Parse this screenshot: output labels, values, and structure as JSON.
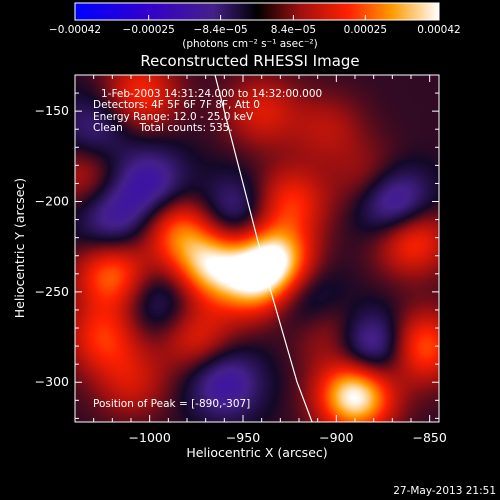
{
  "chart_data": {
    "type": "heatmap",
    "title": "Reconstructed RHESSI Image",
    "xlabel": "Heliocentric X (arcsec)",
    "ylabel": "Heliocentric Y (arcsec)",
    "xlim": [
      -1040,
      -845
    ],
    "ylim": [
      -322,
      -130
    ],
    "x_ticks": [
      -1000,
      -950,
      -900,
      -850
    ],
    "x_tick_labels": [
      "−1000",
      "−950",
      "−900",
      "−850"
    ],
    "y_ticks": [
      -150,
      -200,
      -250,
      -300
    ],
    "y_tick_labels": [
      "−150",
      "−200",
      "−250",
      "−300"
    ],
    "colorbar": {
      "range": [
        -0.00042,
        0.00042
      ],
      "ticks": [
        -0.00042,
        -0.00025,
        -8.4e-05,
        8.4e-05,
        0.00025,
        0.00042
      ],
      "tick_labels": [
        "−0.00042",
        "−0.00025",
        "−8.4e−05",
        "8.4e−05",
        "0.00025",
        "0.00042"
      ],
      "units": "(photons cm⁻² s⁻¹ asec⁻²)"
    },
    "annotations": {
      "time_range": "1-Feb-2003 14:31:24.000 to 14:32:00.000",
      "detectors": "Detectors: 4F 5F 6F 7F 8F, Att 0",
      "energy": "Energy Range: 12.0 - 25.0 keV",
      "clean": "Clean     Total counts: 535.",
      "peak": "Position of Peak = [-890,-307]"
    },
    "limb_curve": [
      [
        -965,
        -130
      ],
      [
        -950,
        -190
      ],
      [
        -935,
        -250
      ],
      [
        -921,
        -300
      ],
      [
        -913,
        -322
      ]
    ],
    "peak_position": [
      -890,
      -307
    ],
    "features": [
      {
        "x": -890,
        "y": -307,
        "intensity": 1.0
      },
      {
        "x": -933,
        "y": -232,
        "intensity": 0.85
      },
      {
        "x": -945,
        "y": -245,
        "intensity": 0.6
      },
      {
        "x": -968,
        "y": -235,
        "intensity": 0.75
      },
      {
        "x": -985,
        "y": -215,
        "intensity": 0.55
      },
      {
        "x": -1020,
        "y": -240,
        "intensity": 0.6
      },
      {
        "x": -1025,
        "y": -275,
        "intensity": 0.45
      },
      {
        "x": -975,
        "y": -275,
        "intensity": 0.4
      },
      {
        "x": -925,
        "y": -200,
        "intensity": 0.45
      },
      {
        "x": -860,
        "y": -220,
        "intensity": 0.55
      },
      {
        "x": -855,
        "y": -280,
        "intensity": 0.6
      },
      {
        "x": -880,
        "y": -190,
        "intensity": 0.35
      },
      {
        "x": -1005,
        "y": -140,
        "intensity": 0.45
      },
      {
        "x": -940,
        "y": -150,
        "intensity": 0.35
      },
      {
        "x": -905,
        "y": -160,
        "intensity": 0.25
      },
      {
        "x": -1010,
        "y": -300,
        "intensity": 0.3
      },
      {
        "x": -905,
        "y": -270,
        "intensity": 0.3
      },
      {
        "x": -1035,
        "y": -185,
        "intensity": 0.3
      },
      {
        "x": -870,
        "y": -200,
        "intensity": -0.7
      },
      {
        "x": -880,
        "y": -280,
        "intensity": -0.55
      },
      {
        "x": -1000,
        "y": -190,
        "intensity": -0.45
      },
      {
        "x": -960,
        "y": -300,
        "intensity": -0.45
      },
      {
        "x": -1020,
        "y": -210,
        "intensity": -0.4
      },
      {
        "x": -955,
        "y": -205,
        "intensity": -0.35
      },
      {
        "x": -915,
        "y": -255,
        "intensity": -0.3
      },
      {
        "x": -1030,
        "y": -160,
        "intensity": -0.3
      },
      {
        "x": -995,
        "y": -255,
        "intensity": -0.3
      }
    ]
  },
  "timestamp": "27-May-2013 21:51"
}
